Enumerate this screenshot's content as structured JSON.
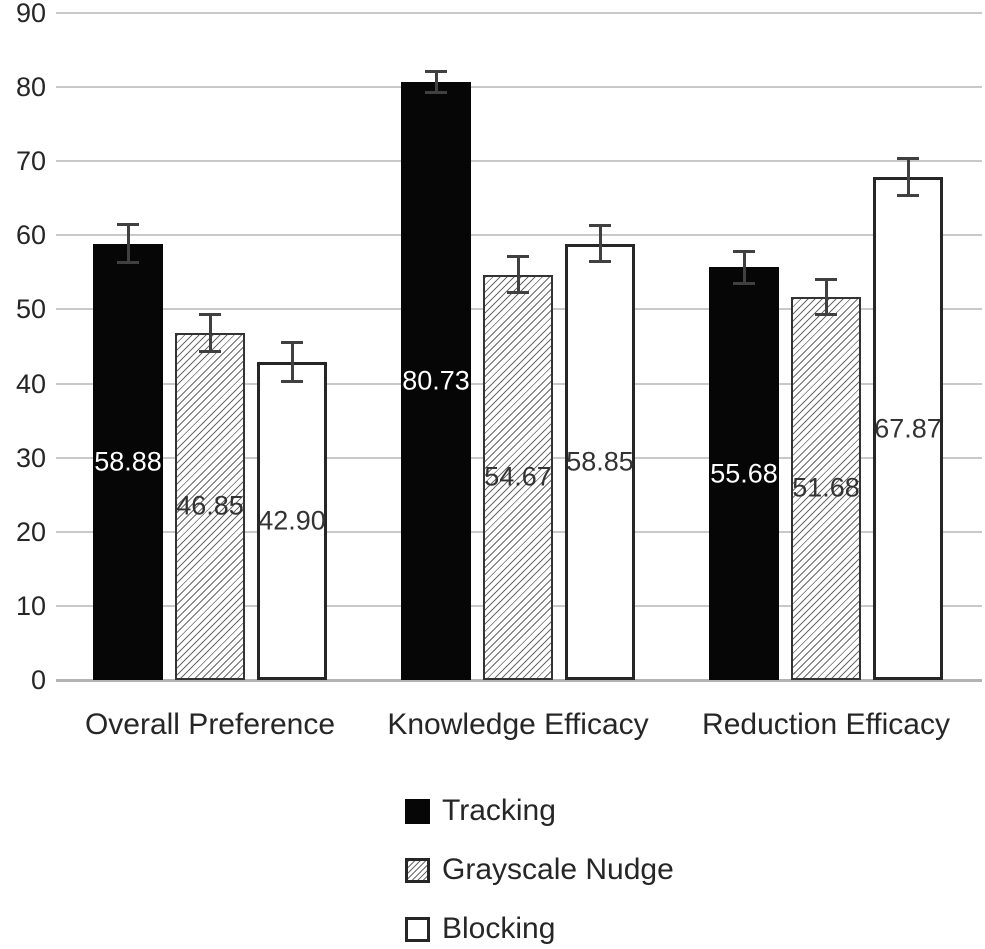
{
  "chart_data": {
    "type": "bar",
    "title": "",
    "xlabel": "",
    "ylabel": "",
    "categories": [
      "Overall Preference",
      "Knowledge Efficacy",
      "Reduction Efficacy"
    ],
    "series": [
      {
        "name": "Tracking",
        "style": "solid-black",
        "values": [
          58.88,
          80.73,
          55.68
        ],
        "labels": [
          "58.88",
          "80.73",
          "55.68"
        ],
        "errors": [
          2.6,
          1.5,
          2.2
        ]
      },
      {
        "name": "Grayscale Nudge",
        "style": "hatched",
        "values": [
          46.85,
          54.67,
          51.68
        ],
        "labels": [
          "46.85",
          "54.67",
          "51.68"
        ],
        "errors": [
          2.6,
          2.5,
          2.4
        ]
      },
      {
        "name": "Blocking",
        "style": "white",
        "values": [
          42.9,
          58.85,
          67.87
        ],
        "labels": [
          "42.90",
          "58.85",
          "67.87"
        ],
        "errors": [
          2.7,
          2.5,
          2.5
        ]
      }
    ],
    "ylim": [
      0,
      90
    ],
    "yticks": [
      "0",
      "10",
      "20",
      "30",
      "40",
      "50",
      "60",
      "70",
      "80",
      "90"
    ],
    "grid": true,
    "value_labels": "centered-in-bar",
    "legend_position": "bottom-left-of-center",
    "colors": {
      "bar_fill_black": "#060606",
      "bar_border": "#262626",
      "gridline": "#c9c9c9",
      "axis_line": "#b3b3b3",
      "error_bar": "#404040",
      "text": "#262626",
      "value_label_on_black": "#ffffff",
      "value_label_on_light": "#333333",
      "background": "#ffffff"
    }
  }
}
